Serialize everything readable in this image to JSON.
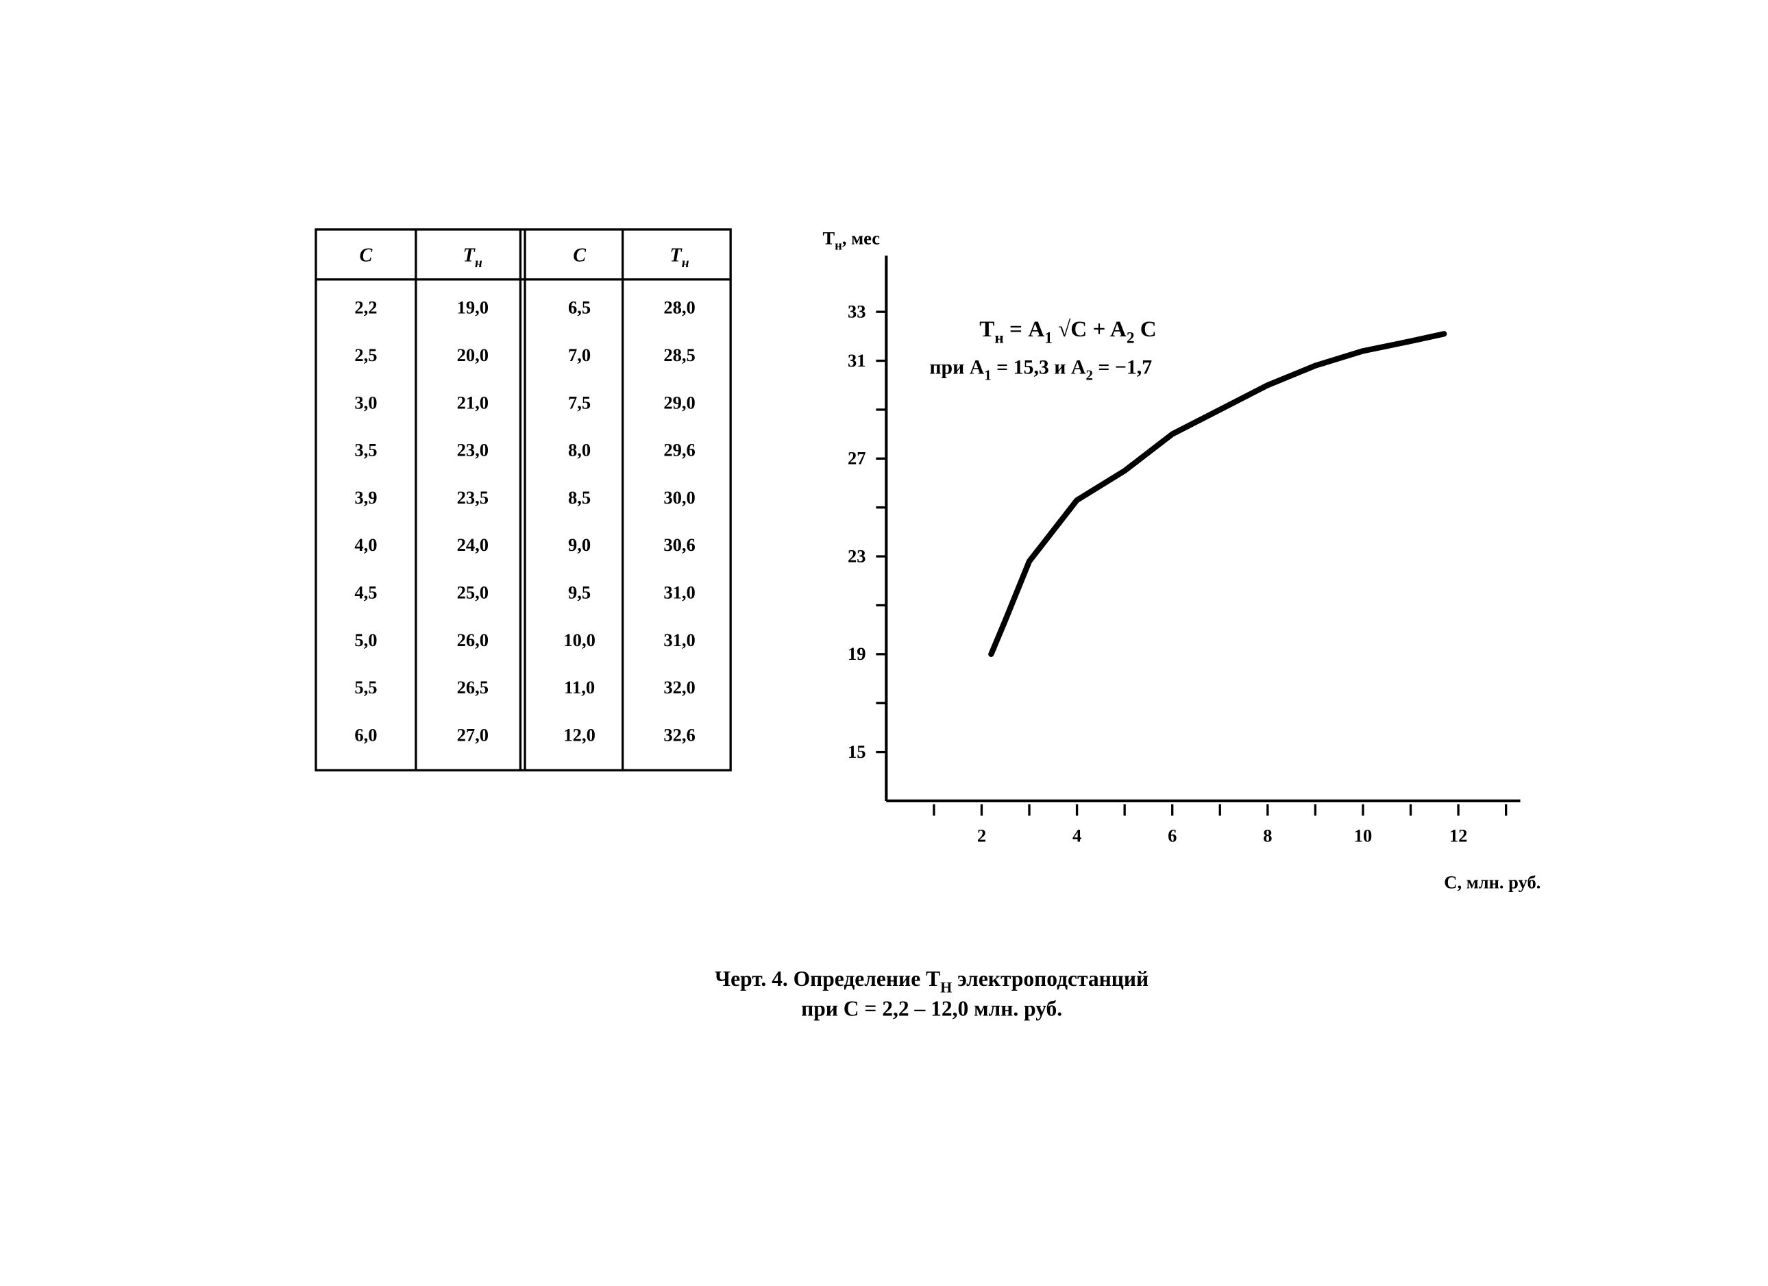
{
  "table": {
    "header": [
      [
        "C"
      ],
      [
        "T",
        "н"
      ],
      [
        "C"
      ],
      [
        "T",
        "н"
      ]
    ],
    "rows": [
      [
        "2,2",
        "19,0",
        "6,5",
        "28,0"
      ],
      [
        "2,5",
        "20,0",
        "7,0",
        "28,5"
      ],
      [
        "3,0",
        "21,0",
        "7,5",
        "29,0"
      ],
      [
        "3,5",
        "23,0",
        "8,0",
        "29,6"
      ],
      [
        "3,9",
        "23,5",
        "8,5",
        "30,0"
      ],
      [
        "4,0",
        "24,0",
        "9,0",
        "30,6"
      ],
      [
        "4,5",
        "25,0",
        "9,5",
        "31,0"
      ],
      [
        "5,0",
        "26,0",
        "10,0",
        "31,0"
      ],
      [
        "5,5",
        "26,5",
        "11,0",
        "32,0"
      ],
      [
        "6,0",
        "27,0",
        "12,0",
        "32,6"
      ]
    ]
  },
  "chart_data": {
    "type": "line",
    "x": [
      2.2,
      2.5,
      3,
      4,
      5,
      6,
      7,
      8,
      9,
      10,
      11,
      11.7
    ],
    "series": [
      {
        "color": "#000000",
        "values": [
          19,
          20.4,
          22.8,
          25.3,
          26.5,
          28,
          29,
          30,
          30.8,
          31.4,
          31.8,
          32.1
        ]
      }
    ],
    "xlim": [
      0,
      13.3
    ],
    "ylim": [
      13,
      35.3
    ],
    "xticks": [
      2,
      4,
      6,
      8,
      10,
      12
    ],
    "yticks": [
      15,
      19,
      23,
      27,
      31,
      33
    ],
    "x_minor_ticks": [
      1,
      3,
      5,
      7,
      9,
      11,
      13
    ],
    "y_minor_ticks": [
      17,
      21,
      25,
      29
    ],
    "x_label": [
      "C, млн. руб."
    ],
    "y_label": [
      "T",
      "н",
      ", мес"
    ],
    "annotations": [
      [
        "T",
        "н",
        " = A",
        "1",
        " √C + A",
        "2",
        " C"
      ],
      [
        "при A",
        "1",
        " = 15,3 и A",
        "2",
        " = −1,7"
      ]
    ]
  },
  "caption": [
    [
      "Черт. 4. Определение T",
      "Н",
      " электроподстанций"
    ],
    [
      "при C = 2,2 – 12,0 млн. руб."
    ]
  ]
}
